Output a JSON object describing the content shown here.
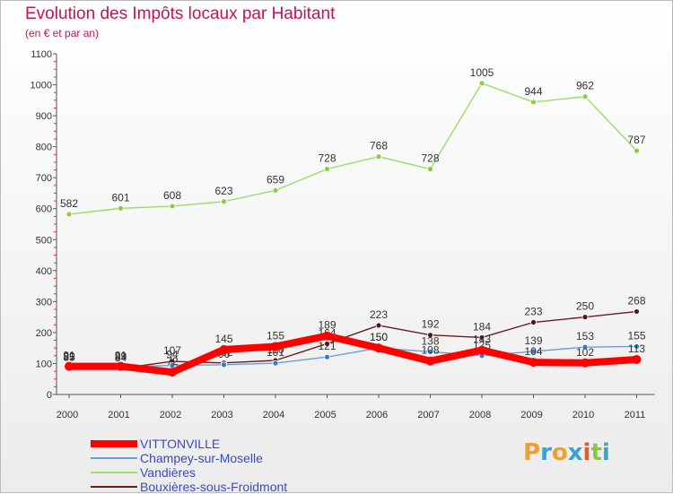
{
  "chart_data": {
    "type": "line",
    "title": "Evolution des Impôts locaux par Habitant",
    "subtitle": "(en € et par an)",
    "xlabel": "",
    "ylabel": "",
    "x": [
      "2000",
      "2001",
      "2002",
      "2003",
      "2004",
      "2005",
      "2006",
      "2007",
      "2008",
      "2009",
      "2010",
      "2011"
    ],
    "ylim": [
      0,
      1100
    ],
    "yticks": [
      0,
      100,
      200,
      300,
      400,
      500,
      600,
      700,
      800,
      900,
      1000,
      1100
    ],
    "grid": false,
    "legend_position": "bottom-left",
    "series": [
      {
        "name": "VITTONVILLE",
        "color": "#ff0000",
        "values": [
          91,
          91,
          72,
          145,
          155,
          189,
          150,
          108,
          143,
          104,
          102,
          113
        ]
      },
      {
        "name": "Champey-sur-Moselle",
        "color": "#6a9fd4",
        "values": [
          89,
          89,
          94,
          96,
          101,
          121,
          150,
          138,
          125,
          139,
          153,
          155
        ]
      },
      {
        "name": "Vandières",
        "color": "#99dd66",
        "values": [
          582,
          601,
          608,
          623,
          659,
          728,
          768,
          728,
          1005,
          944,
          962,
          787
        ]
      },
      {
        "name": "Bouxières-sous-Froidmont",
        "color": "#6b1a22",
        "values": [
          85,
          84,
          107,
          102,
          110,
          164,
          223,
          192,
          184,
          233,
          250,
          268
        ]
      }
    ]
  },
  "logo_text": "Proxiti"
}
